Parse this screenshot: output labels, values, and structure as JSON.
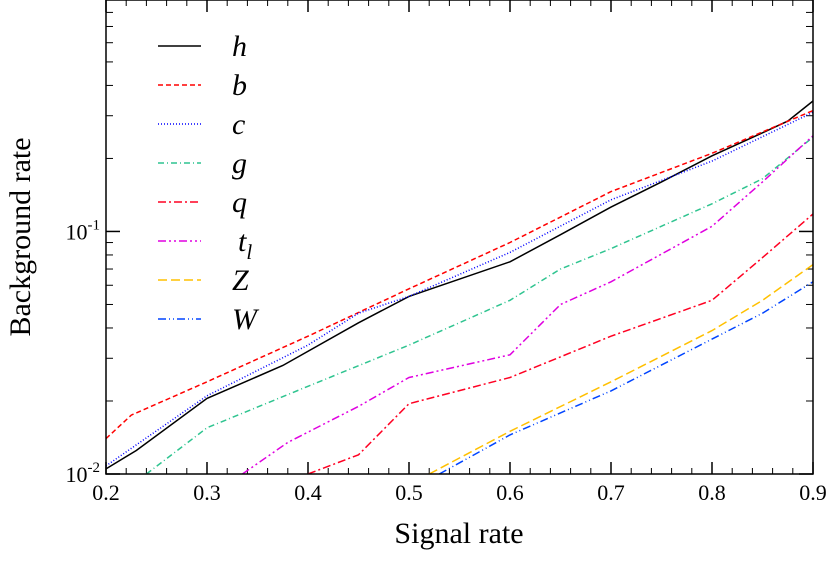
{
  "chart_data": {
    "type": "line",
    "xlabel": "Signal rate",
    "ylabel": "Background rate",
    "xlim": [
      0.2,
      0.9
    ],
    "ylim": [
      0.01,
      0.9
    ],
    "yscale": "log",
    "x_ticks": [
      "0.2",
      "0.3",
      "0.4",
      "0.5",
      "0.6",
      "0.7",
      "0.8",
      "0.9"
    ],
    "y_tick_labels": [
      {
        "base": "10",
        "exp": "-2"
      },
      {
        "base": "10",
        "exp": "-1"
      }
    ],
    "legend_position": "top-left",
    "series": [
      {
        "name": "h",
        "sub": "",
        "color": "#000000",
        "dash": "",
        "x": [
          0.2,
          0.23,
          0.3,
          0.375,
          0.45,
          0.5,
          0.6,
          0.65,
          0.7,
          0.75,
          0.8,
          0.85,
          0.875,
          0.9
        ],
        "y": [
          0.0105,
          0.0125,
          0.0205,
          0.028,
          0.042,
          0.054,
          0.075,
          0.097,
          0.126,
          0.16,
          0.205,
          0.255,
          0.285,
          0.345
        ]
      },
      {
        "name": "b",
        "sub": "",
        "color": "#ff0000",
        "dash": "5,3",
        "x": [
          0.2,
          0.225,
          0.3,
          0.4,
          0.5,
          0.6,
          0.7,
          0.8,
          0.9
        ],
        "y": [
          0.014,
          0.0175,
          0.024,
          0.037,
          0.058,
          0.09,
          0.146,
          0.21,
          0.315
        ]
      },
      {
        "name": "c",
        "sub": "",
        "color": "#0000ff",
        "dash": "1,2",
        "x": [
          0.2,
          0.3,
          0.4,
          0.45,
          0.5,
          0.6,
          0.7,
          0.8,
          0.9
        ],
        "y": [
          0.0108,
          0.021,
          0.034,
          0.046,
          0.054,
          0.082,
          0.135,
          0.195,
          0.31
        ]
      },
      {
        "name": "g",
        "sub": "",
        "color": "#2fc490",
        "dash": "6,3,1,3",
        "x": [
          0.24,
          0.3,
          0.4,
          0.5,
          0.6,
          0.65,
          0.7,
          0.8,
          0.85,
          0.9
        ],
        "y": [
          0.01,
          0.0155,
          0.023,
          0.034,
          0.052,
          0.07,
          0.085,
          0.13,
          0.165,
          0.245
        ]
      },
      {
        "name": "q",
        "sub": "",
        "color": "#ff0022",
        "dash": "8,3,2,3",
        "x": [
          0.4,
          0.45,
          0.5,
          0.6,
          0.7,
          0.8,
          0.85,
          0.9
        ],
        "y": [
          0.01,
          0.012,
          0.0195,
          0.025,
          0.037,
          0.052,
          0.078,
          0.118
        ]
      },
      {
        "name": "t",
        "sub": "l",
        "color": "#e000e0",
        "dash": "8,3,2,3,2,3",
        "x": [
          0.335,
          0.38,
          0.45,
          0.5,
          0.6,
          0.65,
          0.7,
          0.8,
          0.85,
          0.9
        ],
        "y": [
          0.01,
          0.0135,
          0.019,
          0.025,
          0.031,
          0.05,
          0.062,
          0.105,
          0.16,
          0.248
        ]
      },
      {
        "name": "Z",
        "sub": "",
        "color": "#ffc000",
        "dash": "9,4",
        "x": [
          0.52,
          0.6,
          0.7,
          0.8,
          0.85,
          0.9
        ],
        "y": [
          0.01,
          0.015,
          0.024,
          0.039,
          0.052,
          0.073
        ]
      },
      {
        "name": "W",
        "sub": "",
        "color": "#0044ff",
        "dash": "8,3,1,3,1,3",
        "x": [
          0.53,
          0.6,
          0.7,
          0.8,
          0.85,
          0.9
        ],
        "y": [
          0.01,
          0.0145,
          0.022,
          0.036,
          0.046,
          0.062
        ]
      }
    ]
  }
}
